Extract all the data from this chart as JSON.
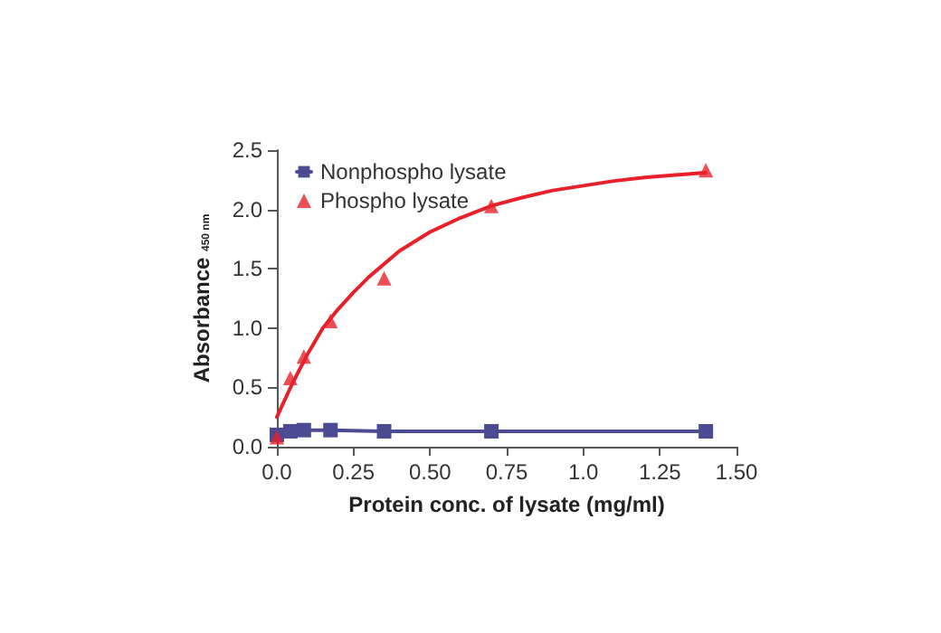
{
  "chart_data": {
    "type": "scatter",
    "xlabel": "Protein conc. of lysate (mg/ml)",
    "ylabel": "Absorbance $_{450 nm}$",
    "x": [
      0,
      0.044,
      0.088,
      0.175,
      0.35,
      0.7,
      1.4
    ],
    "series": [
      {
        "name": "Nonphospho lysate",
        "type": "line",
        "color": "#4b4a93",
        "marker": "square",
        "values": [
          0.1,
          0.13,
          0.14,
          0.14,
          0.13,
          0.13,
          0.13
        ]
      },
      {
        "name": "Phospho lysate",
        "color": "#e8202a",
        "marker": "triangle",
        "values": [
          0.08,
          0.58,
          0.76,
          1.06,
          1.42,
          2.03,
          2.33
        ]
      },
      {
        "type": "line",
        "color": "#e8202a",
        "marker": "none",
        "x": [
          0,
          0.05,
          0.1,
          0.15,
          0.2,
          0.25,
          0.3,
          0.4,
          0.5,
          0.6,
          0.7,
          0.8,
          0.9,
          1.0,
          1.1,
          1.2,
          1.3,
          1.4
        ],
        "values": [
          0.25,
          0.53,
          0.78,
          1.0,
          1.16,
          1.3,
          1.43,
          1.65,
          1.81,
          1.93,
          2.03,
          2.1,
          2.16,
          2.2,
          2.24,
          2.27,
          2.29,
          2.31
        ]
      }
    ],
    "xlim": [
      0,
      1.5
    ],
    "xticks": [
      {
        "value": 0,
        "label": "0.0"
      },
      0.25,
      {
        "value": 0.5,
        "label": "0.50"
      },
      0.75,
      {
        "value": 1,
        "label": "1.0"
      },
      1.25,
      {
        "value": 1.5,
        "label": "1.50"
      }
    ],
    "ylim": [
      0,
      2.5
    ],
    "yticks": [
      {
        "value": 0,
        "label": "0.0"
      },
      0.5,
      {
        "value": 1,
        "label": "1.0"
      },
      1.5,
      {
        "value": 2,
        "label": "2.0"
      },
      2.5
    ],
    "grid": false,
    "legend": "top left",
    "line_style": "solid"
  }
}
